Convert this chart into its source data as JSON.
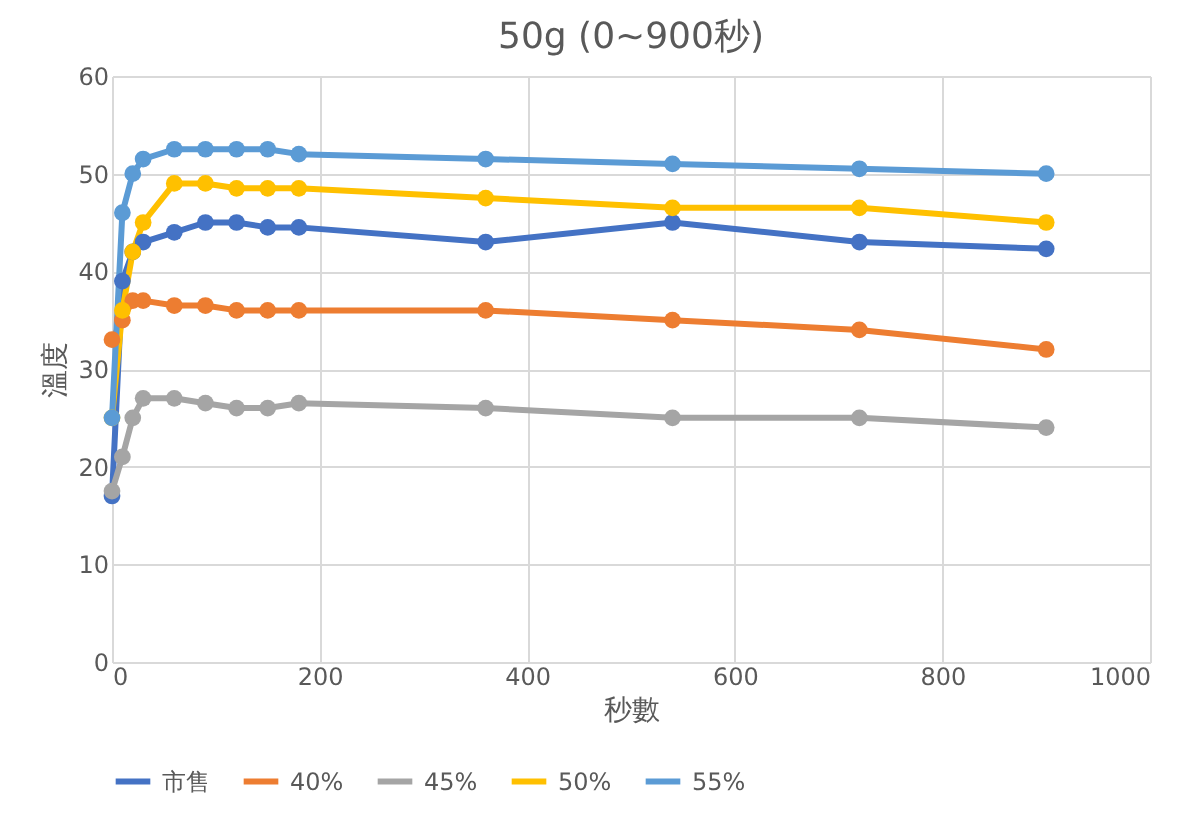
{
  "chart_data": {
    "type": "line",
    "title": "50g (0~900秒)",
    "xlabel": "秒數",
    "ylabel": "溫度",
    "x": [
      0,
      10,
      20,
      30,
      60,
      90,
      120,
      150,
      180,
      360,
      540,
      720,
      900
    ],
    "series": [
      {
        "name": "市售",
        "color": "#4472c4",
        "values": [
          17,
          39,
          42,
          43,
          44,
          45,
          45,
          44.5,
          44.5,
          43,
          45,
          43,
          42.3
        ]
      },
      {
        "name": "40%",
        "color": "#ed7d31",
        "values": [
          33,
          35,
          37,
          37,
          36.5,
          36.5,
          36,
          36,
          36,
          36,
          35,
          34,
          32
        ]
      },
      {
        "name": "45%",
        "color": "#a5a5a5",
        "values": [
          17.5,
          21,
          25,
          27,
          27,
          26.5,
          26,
          26,
          26.5,
          26,
          25,
          25,
          24
        ]
      },
      {
        "name": "50%",
        "color": "#ffc000",
        "values": [
          25,
          36,
          42,
          45,
          49,
          49,
          48.5,
          48.5,
          48.5,
          47.5,
          46.5,
          46.5,
          45
        ]
      },
      {
        "name": "55%",
        "color": "#5b9bd5",
        "values": [
          25,
          46,
          50,
          51.5,
          52.5,
          52.5,
          52.5,
          52.5,
          52,
          51.5,
          51,
          50.5,
          50
        ]
      }
    ],
    "xlim": [
      0,
      1000
    ],
    "xticks": [
      0,
      200,
      400,
      600,
      800,
      1000
    ],
    "ylim": [
      0,
      60
    ],
    "yticks": [
      0,
      10,
      20,
      30,
      40,
      50,
      60
    ],
    "grid": true,
    "legend": "bottom",
    "marker": "circle",
    "line_style": "solid"
  }
}
